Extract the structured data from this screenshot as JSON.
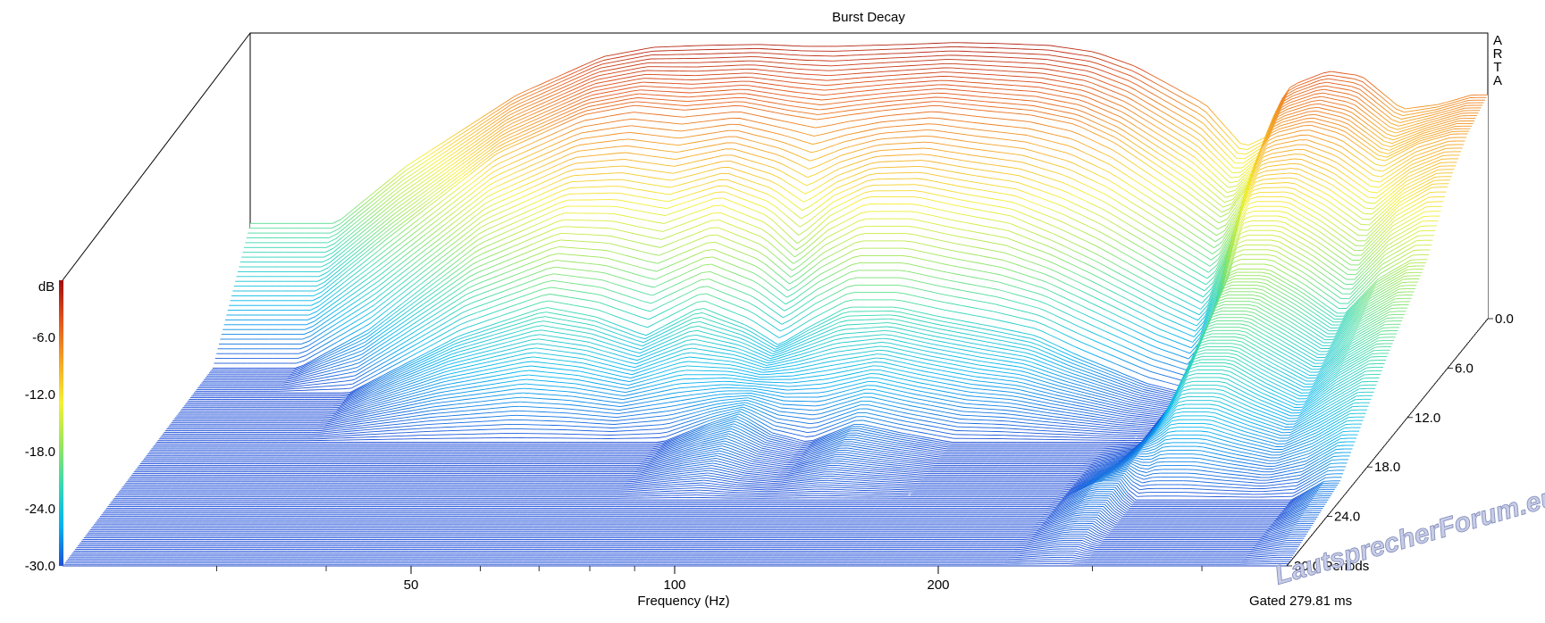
{
  "chart_data": {
    "type": "waterfall",
    "title": "Burst Decay",
    "xlabel": "Frequency (Hz)",
    "x_scale": "log",
    "xlim": [
      20,
      500
    ],
    "x_ticks": [
      50,
      100,
      200
    ],
    "z_unit": "Periods",
    "z_ticks": [
      0.0,
      6.0,
      12.0,
      18.0,
      24.0,
      30.0
    ],
    "zlim": [
      0,
      30
    ],
    "y_unit": "dB",
    "y_ticks": [
      -6.0,
      -12.0,
      -18.0,
      -24.0,
      -30.0
    ],
    "ylim": [
      -30,
      0
    ],
    "gated_text": "Gated 279.81 ms",
    "software_mark": "ARTA",
    "watermark": "LautsprecherForum.eu",
    "colorscale": [
      "#1f4fd8",
      "#00b4f0",
      "#38d9b0",
      "#9ce65a",
      "#f5f032",
      "#f5a623",
      "#e2541b",
      "#a00d0d"
    ],
    "series": [
      {
        "z": 0,
        "x": [
          25,
          30,
          40,
          50,
          57,
          65,
          75,
          85,
          92,
          100,
          110,
          125,
          140,
          160,
          180,
          200,
          240,
          265,
          280,
          290,
          300,
          330,
          360,
          400,
          440,
          480
        ],
        "y": [
          -20,
          -14,
          -6.5,
          -2.5,
          -1.5,
          -1.3,
          -1.2,
          -1.4,
          -1.4,
          -1.3,
          -1.2,
          -1.0,
          -1.1,
          -1.3,
          -2.0,
          -3.5,
          -7.5,
          -12,
          -11,
          -7.5,
          -5.5,
          -4,
          -4.5,
          -8,
          -7.5,
          -6.5
        ]
      },
      {
        "z": 3,
        "x": [
          25,
          30,
          40,
          50,
          57,
          65,
          75,
          85,
          92,
          100,
          110,
          125,
          140,
          160,
          180,
          200,
          240,
          265,
          280,
          290,
          300,
          330,
          360,
          400,
          440,
          480
        ],
        "y": [
          -25,
          -19,
          -10,
          -6,
          -5,
          -5.5,
          -5,
          -6,
          -6.5,
          -6,
          -5.5,
          -5,
          -5.5,
          -6,
          -7,
          -9,
          -14,
          -17,
          -14,
          -10,
          -8,
          -7,
          -8,
          -11,
          -9,
          -8
        ]
      },
      {
        "z": 6,
        "x": [
          25,
          30,
          40,
          50,
          57,
          65,
          75,
          85,
          92,
          100,
          110,
          125,
          140,
          160,
          180,
          200,
          240,
          265,
          280,
          290,
          300,
          330,
          360,
          400,
          440,
          480
        ],
        "y": [
          -30,
          -26,
          -17,
          -13,
          -13,
          -14,
          -12,
          -14,
          -17,
          -14,
          -12,
          -12,
          -13,
          -14,
          -16,
          -18,
          -22,
          -24,
          -19,
          -14,
          -12,
          -12,
          -14,
          -17,
          -13,
          -11
        ]
      },
      {
        "z": 9,
        "x": [
          25,
          30,
          40,
          50,
          57,
          65,
          75,
          85,
          92,
          100,
          110,
          125,
          140,
          160,
          180,
          200,
          240,
          265,
          280,
          290,
          300,
          330,
          360,
          400,
          440,
          480
        ],
        "y": [
          -30,
          -30,
          -24,
          -21,
          -22,
          -24,
          -21,
          -23,
          -25,
          -23,
          -21,
          -21,
          -22,
          -23,
          -24,
          -26,
          -29,
          -30,
          -25,
          -20,
          -17,
          -17,
          -19,
          -22,
          -18,
          -16
        ]
      },
      {
        "z": 15,
        "x": [
          25,
          30,
          40,
          50,
          57,
          65,
          75,
          85,
          92,
          100,
          110,
          125,
          140,
          160,
          180,
          200,
          240,
          265,
          280,
          290,
          300,
          330,
          360,
          400,
          440,
          480
        ],
        "y": [
          -30,
          -30,
          -30,
          -30,
          -30,
          -30,
          -30,
          -28,
          -27,
          -29,
          -30,
          -28,
          -29,
          -30,
          -30,
          -30,
          -30,
          -30,
          -27,
          -24,
          -22,
          -22,
          -24,
          -26,
          -23,
          -21
        ]
      },
      {
        "z": 22,
        "x": [
          25,
          30,
          40,
          50,
          57,
          65,
          75,
          85,
          92,
          100,
          110,
          125,
          140,
          160,
          180,
          200,
          240,
          265,
          280,
          290,
          300,
          330,
          360,
          400,
          440,
          480
        ],
        "y": [
          -30,
          -30,
          -30,
          -30,
          -30,
          -30,
          -30,
          -30,
          -30,
          -30,
          -30,
          -30,
          -30,
          -30,
          -30,
          -30,
          -30,
          -28,
          -28,
          -30,
          -30,
          -30,
          -30,
          -30,
          -30,
          -28
        ]
      },
      {
        "z": 30,
        "x": [
          25,
          30,
          40,
          50,
          57,
          65,
          75,
          85,
          92,
          100,
          110,
          125,
          140,
          160,
          180,
          200,
          240,
          265,
          280,
          290,
          300,
          330,
          360,
          400,
          440,
          480
        ],
        "y": [
          -30,
          -30,
          -30,
          -30,
          -30,
          -30,
          -30,
          -30,
          -30,
          -30,
          -30,
          -30,
          -30,
          -30,
          -30,
          -30,
          -30,
          -30,
          -30,
          -30,
          -30,
          -30,
          -30,
          -30,
          -30,
          -30
        ]
      }
    ]
  }
}
